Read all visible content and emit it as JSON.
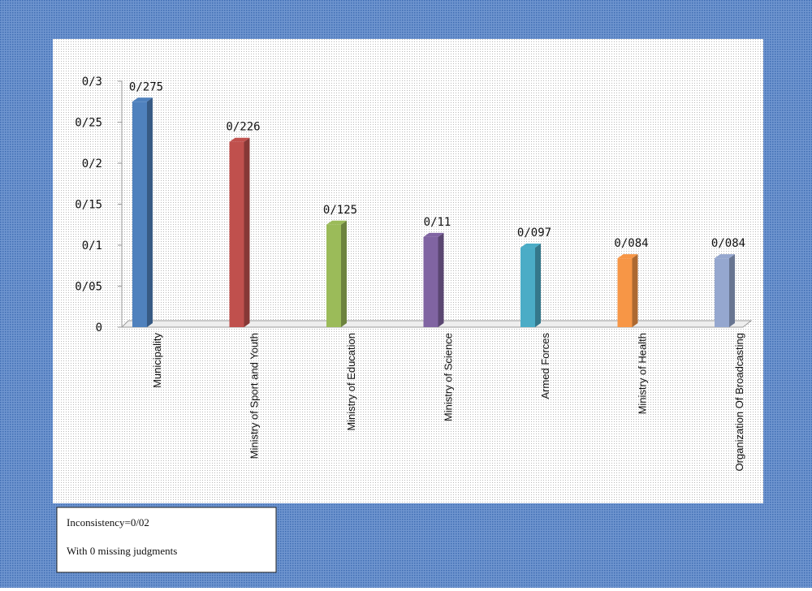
{
  "chart_data": {
    "type": "bar",
    "categories": [
      "Municipality",
      "Ministry of Sport and Youth",
      "Ministry of Education",
      "Ministry of Science",
      "Armed Forces",
      "Ministry of Health",
      "Organization Of Broadcasting"
    ],
    "values": [
      0.275,
      0.226,
      0.125,
      0.11,
      0.097,
      0.084,
      0.084
    ],
    "value_labels": [
      "0/275",
      "0/226",
      "0/125",
      "0/11",
      "0/097",
      "0/084",
      "0/084"
    ],
    "colors": [
      "#4f81bd",
      "#c0504d",
      "#9bbb59",
      "#8064a2",
      "#4bacc6",
      "#f79646",
      "#95a7cf"
    ],
    "ylim": [
      0,
      0.3
    ],
    "yticks": [
      {
        "value": 0,
        "label": "0"
      },
      {
        "value": 0.05,
        "label": "0/05"
      },
      {
        "value": 0.1,
        "label": "0/1"
      },
      {
        "value": 0.15,
        "label": "0/15"
      },
      {
        "value": 0.2,
        "label": "0/2"
      },
      {
        "value": 0.25,
        "label": "0/25"
      },
      {
        "value": 0.3,
        "label": "0/3"
      }
    ],
    "annotations": [
      "Inconsistency=0/02",
      "With 0 missing judgments"
    ]
  }
}
